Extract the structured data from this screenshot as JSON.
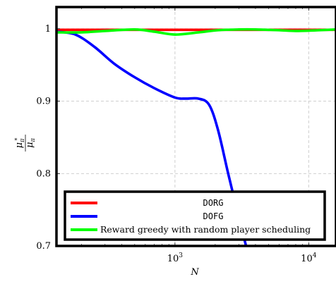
{
  "chart_data": {
    "type": "line",
    "title": "",
    "xlabel": "N",
    "ylabel": {
      "numerator": "μ",
      "numerator_sub": "π",
      "numerator_sup": "*",
      "denominator": "μ",
      "denominator_sub": "π"
    },
    "x_scale": "log",
    "xlim": [
      130,
      16000
    ],
    "ylim": [
      0.7,
      1.03
    ],
    "grid": true,
    "legend_position": "bottom",
    "x_ticks": [
      {
        "value": 1000,
        "base": "10",
        "exp": "3"
      },
      {
        "value": 10000,
        "base": "10",
        "exp": "4"
      }
    ],
    "y_ticks": [
      {
        "value": 1.0,
        "label": "1"
      },
      {
        "value": 0.9,
        "label": "0.9"
      },
      {
        "value": 0.8,
        "label": "0.8"
      },
      {
        "value": 0.7,
        "label": "0.7"
      }
    ],
    "series": [
      {
        "name": "DORG",
        "color": "#ff0000",
        "x": [
          130,
          300,
          1000,
          3000,
          10000,
          16000
        ],
        "y": [
          0.9985,
          0.9985,
          0.9985,
          0.9985,
          0.9985,
          0.9985
        ]
      },
      {
        "name": "DOFG",
        "color": "#0000ff",
        "x": [
          130,
          180,
          250,
          350,
          500,
          700,
          1000,
          1200,
          1500,
          1800,
          2100,
          2500,
          3000,
          3400
        ],
        "y": [
          0.996,
          0.992,
          0.975,
          0.952,
          0.933,
          0.918,
          0.905,
          0.9035,
          0.9035,
          0.895,
          0.86,
          0.8,
          0.74,
          0.7
        ]
      },
      {
        "name": "Reward greedy with random player scheduling",
        "color": "#00ff00",
        "x": [
          130,
          200,
          300,
          500,
          700,
          1000,
          1500,
          2100,
          3000,
          4000,
          6000,
          8000,
          12000,
          16000
        ],
        "y": [
          0.995,
          0.995,
          0.997,
          0.999,
          0.996,
          0.992,
          0.995,
          0.998,
          0.999,
          0.999,
          0.998,
          0.997,
          0.998,
          0.999
        ]
      }
    ]
  }
}
